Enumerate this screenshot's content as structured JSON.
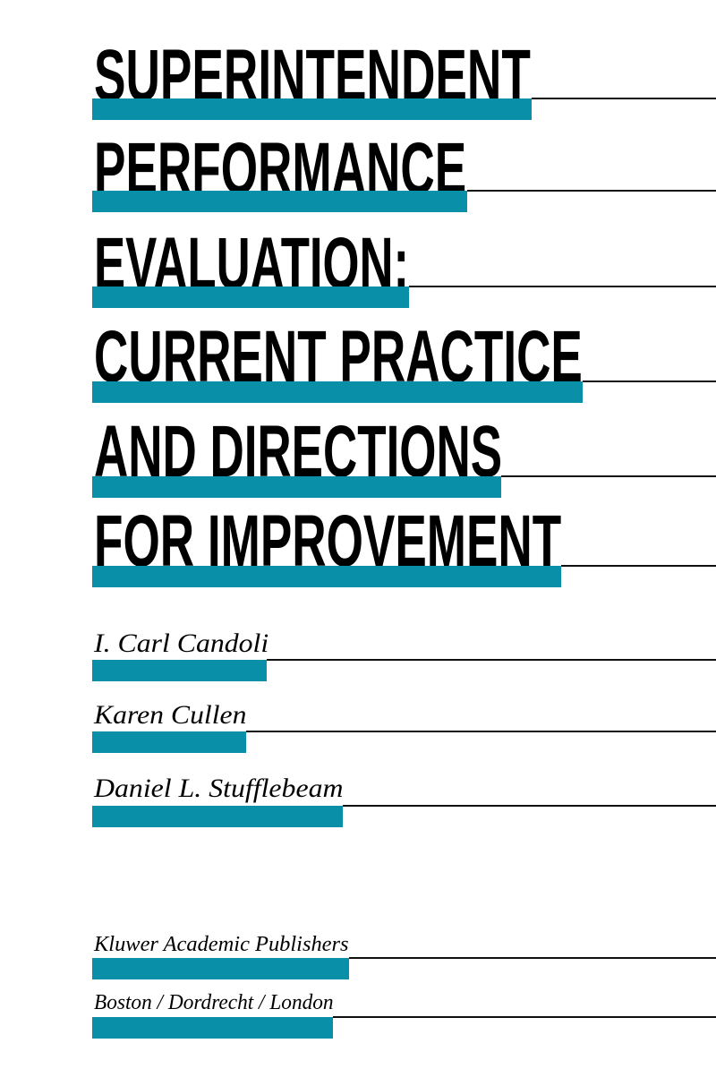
{
  "cover": {
    "accent_color": "#0a8fa8",
    "title_lines": [
      "SUPERINTENDENT",
      "PERFORMANCE",
      "EVALUATION:",
      "CURRENT PRACTICE",
      "AND DIRECTIONS",
      "FOR IMPROVEMENT"
    ],
    "authors": [
      "I. Carl Candoli",
      "Karen Cullen",
      "Daniel L. Stufflebeam"
    ],
    "publisher": "Kluwer Academic Publishers",
    "locations": "Boston / Dordrecht / London"
  }
}
